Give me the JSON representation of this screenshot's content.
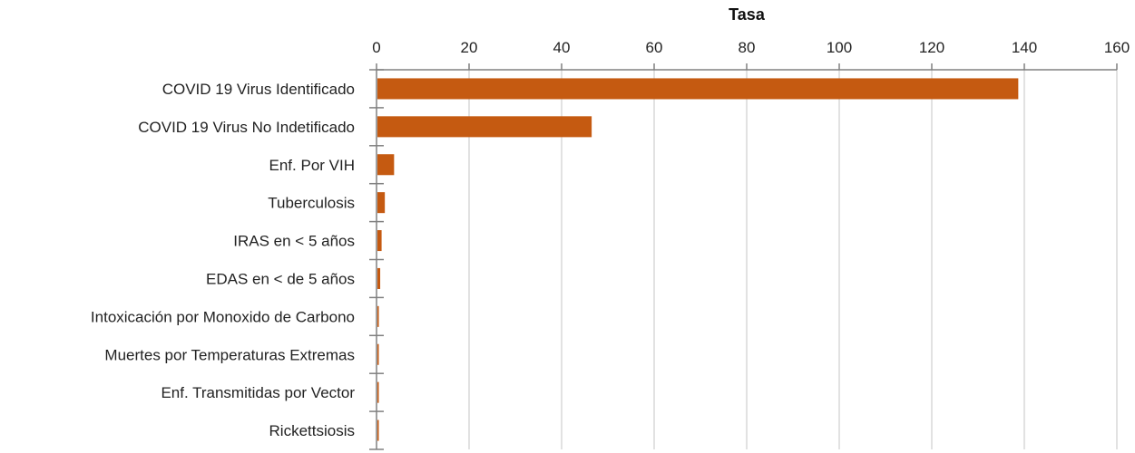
{
  "chart_data": {
    "type": "bar",
    "orientation": "horizontal",
    "title": "",
    "xlabel": "Tasa",
    "ylabel": "",
    "xlim": [
      0,
      160
    ],
    "x_ticks": [
      0,
      20,
      40,
      60,
      80,
      100,
      120,
      140,
      160
    ],
    "x_axis_position": "top",
    "grid": true,
    "categories": [
      "COVID 19 Virus Identificado",
      "COVID 19 Virus No Indetificado",
      "Enf. Por VIH",
      "Tuberculosis",
      "IRAS en < 5 años",
      "EDAS en < de 5 años",
      "Intoxicación por Monoxido de Carbono",
      "Muertes por Temperaturas Extremas",
      "Enf. Transmitidas por Vector",
      "Rickettsiosis"
    ],
    "values": [
      138.5,
      46.3,
      3.6,
      1.6,
      0.9,
      0.6,
      0.3,
      0.2,
      0.1,
      0.1
    ],
    "colors": {
      "bar": "#C55A11",
      "grid": "#D9D9D9",
      "axis": "#808080"
    }
  }
}
